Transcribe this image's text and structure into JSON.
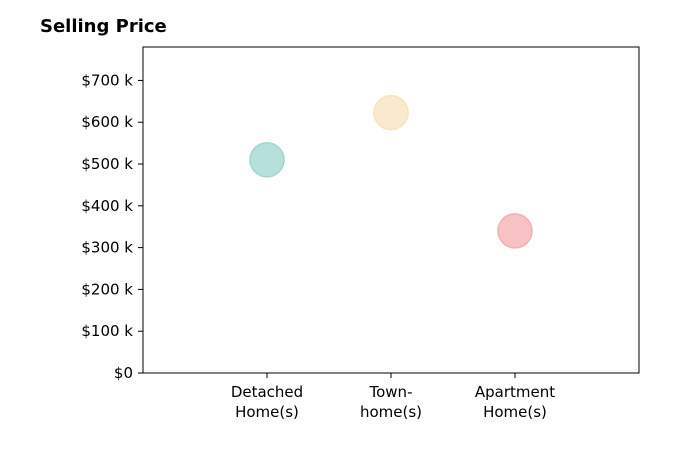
{
  "chart_data": {
    "type": "scatter",
    "title": "Selling Price",
    "xlabel": "",
    "ylabel": "",
    "categories": [
      [
        "Detached",
        "Home(s)"
      ],
      [
        "Town-",
        "home(s)"
      ],
      [
        "Apartment",
        "Home(s)"
      ]
    ],
    "values": [
      510000,
      623000,
      340000
    ],
    "colors": [
      "#9ed6d0",
      "#f7e3bc",
      "#f5aeb2"
    ],
    "yticks": [
      0,
      100000,
      200000,
      300000,
      400000,
      500000,
      600000,
      700000
    ],
    "ytick_labels": [
      "$0",
      "$100 k",
      "$200 k",
      "$300 k",
      "$400 k",
      "$500 k",
      "$600 k",
      "$700 k"
    ],
    "xlim": [
      -1,
      3
    ],
    "ylim": [
      0,
      780000
    ],
    "grid": false
  }
}
